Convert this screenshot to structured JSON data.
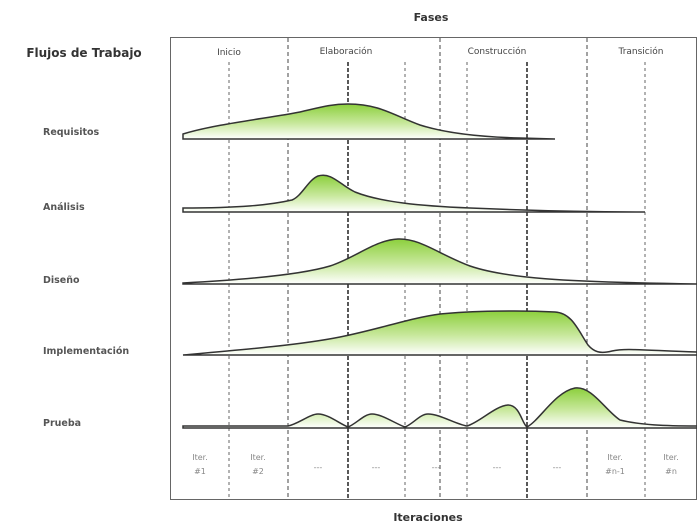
{
  "header": {
    "phases_title": "Fases",
    "workflows_title": "Flujos de Trabajo",
    "iterations_title": "Iteraciones"
  },
  "phases": [
    "Inicio",
    "Elaboración",
    "Construcción",
    "Transición"
  ],
  "workflows": [
    "Requisitos",
    "Análisis",
    "Diseño",
    "Implementación",
    "Prueba"
  ],
  "iterations": [
    {
      "line1": "Iter.",
      "line2": "#1"
    },
    {
      "line1": "Iter.",
      "line2": "#2"
    },
    {
      "line1": "---",
      "line2": ""
    },
    {
      "line1": "---",
      "line2": ""
    },
    {
      "line1": "---",
      "line2": ""
    },
    {
      "line1": "---",
      "line2": ""
    },
    {
      "line1": "---",
      "line2": ""
    },
    {
      "line1": "Iter.",
      "line2": "#n-1"
    },
    {
      "line1": "Iter.",
      "line2": "#n"
    }
  ],
  "colors": {
    "fill_top": "#8ccf3c",
    "fill_bottom": "#ffffff",
    "outline": "#333333",
    "frame": "#666666",
    "grid": "#555555"
  }
}
